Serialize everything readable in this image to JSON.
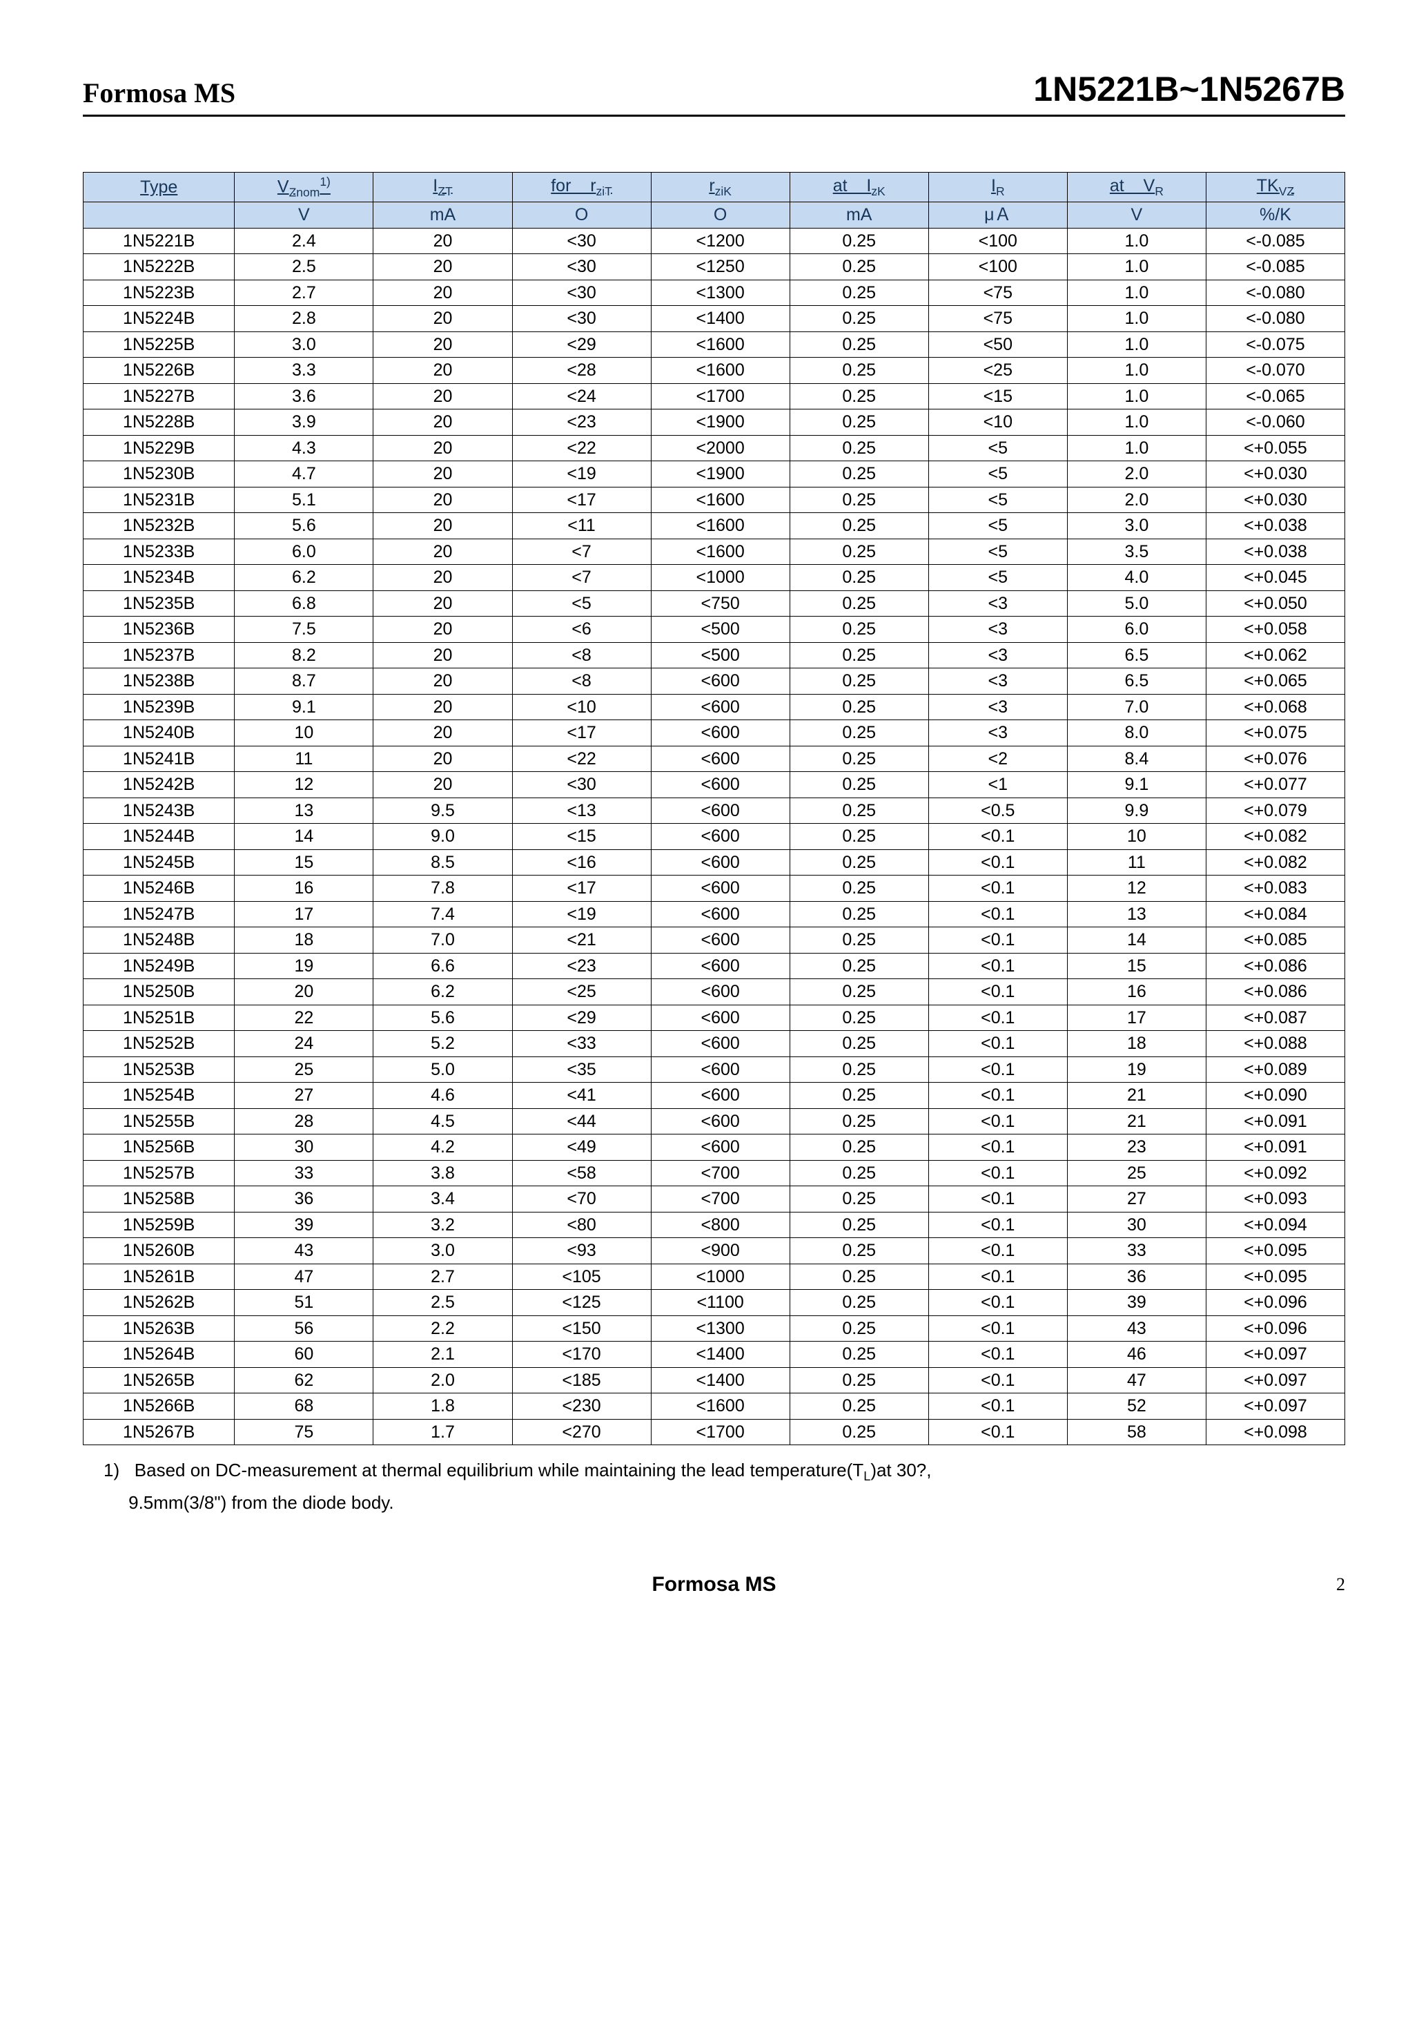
{
  "header": {
    "brand": "Formosa  MS",
    "partno": "1N5221B~1N5267B"
  },
  "table": {
    "header_bg": "#c5d9f1",
    "header_fg": "#16365c",
    "columns": [
      {
        "label_html": "Type",
        "unit": ""
      },
      {
        "label_html": "V<sub>Znom</sub><sup>1)</sup>",
        "unit": "V"
      },
      {
        "label_html": "I<sub>ZT</sub>",
        "unit": "mA"
      },
      {
        "label_html": "for&nbsp;&nbsp;&nbsp;&nbsp;r<sub>ziT</sub>",
        "unit": "Ο"
      },
      {
        "label_html": "r<sub>ziK</sub>",
        "unit": "Ο"
      },
      {
        "label_html": "at&nbsp;&nbsp;&nbsp;&nbsp;I<sub>zK</sub>",
        "unit": "mA"
      },
      {
        "label_html": "I<sub>R</sub>",
        "unit": "μＡ"
      },
      {
        "label_html": "at&nbsp;&nbsp;&nbsp;&nbsp;V<sub>R</sub>",
        "unit": "V"
      },
      {
        "label_html": "TK<sub>VZ</sub>",
        "unit": "%/K"
      }
    ],
    "rows": [
      [
        "1N5221B",
        "2.4",
        "20",
        "<30",
        "<1200",
        "0.25",
        "<100",
        "1.0",
        "<-0.085"
      ],
      [
        "1N5222B",
        "2.5",
        "20",
        "<30",
        "<1250",
        "0.25",
        "<100",
        "1.0",
        "<-0.085"
      ],
      [
        "1N5223B",
        "2.7",
        "20",
        "<30",
        "<1300",
        "0.25",
        "<75",
        "1.0",
        "<-0.080"
      ],
      [
        "1N5224B",
        "2.8",
        "20",
        "<30",
        "<1400",
        "0.25",
        "<75",
        "1.0",
        "<-0.080"
      ],
      [
        "1N5225B",
        "3.0",
        "20",
        "<29",
        "<1600",
        "0.25",
        "<50",
        "1.0",
        "<-0.075"
      ],
      [
        "1N5226B",
        "3.3",
        "20",
        "<28",
        "<1600",
        "0.25",
        "<25",
        "1.0",
        "<-0.070"
      ],
      [
        "1N5227B",
        "3.6",
        "20",
        "<24",
        "<1700",
        "0.25",
        "<15",
        "1.0",
        "<-0.065"
      ],
      [
        "1N5228B",
        "3.9",
        "20",
        "<23",
        "<1900",
        "0.25",
        "<10",
        "1.0",
        "<-0.060"
      ],
      [
        "1N5229B",
        "4.3",
        "20",
        "<22",
        "<2000",
        "0.25",
        "<5",
        "1.0",
        "<+0.055"
      ],
      [
        "1N5230B",
        "4.7",
        "20",
        "<19",
        "<1900",
        "0.25",
        "<5",
        "2.0",
        "<+0.030"
      ],
      [
        "1N5231B",
        "5.1",
        "20",
        "<17",
        "<1600",
        "0.25",
        "<5",
        "2.0",
        "<+0.030"
      ],
      [
        "1N5232B",
        "5.6",
        "20",
        "<11",
        "<1600",
        "0.25",
        "<5",
        "3.0",
        "<+0.038"
      ],
      [
        "1N5233B",
        "6.0",
        "20",
        "<7",
        "<1600",
        "0.25",
        "<5",
        "3.5",
        "<+0.038"
      ],
      [
        "1N5234B",
        "6.2",
        "20",
        "<7",
        "<1000",
        "0.25",
        "<5",
        "4.0",
        "<+0.045"
      ],
      [
        "1N5235B",
        "6.8",
        "20",
        "<5",
        "<750",
        "0.25",
        "<3",
        "5.0",
        "<+0.050"
      ],
      [
        "1N5236B",
        "7.5",
        "20",
        "<6",
        "<500",
        "0.25",
        "<3",
        "6.0",
        "<+0.058"
      ],
      [
        "1N5237B",
        "8.2",
        "20",
        "<8",
        "<500",
        "0.25",
        "<3",
        "6.5",
        "<+0.062"
      ],
      [
        "1N5238B",
        "8.7",
        "20",
        "<8",
        "<600",
        "0.25",
        "<3",
        "6.5",
        "<+0.065"
      ],
      [
        "1N5239B",
        "9.1",
        "20",
        "<10",
        "<600",
        "0.25",
        "<3",
        "7.0",
        "<+0.068"
      ],
      [
        "1N5240B",
        "10",
        "20",
        "<17",
        "<600",
        "0.25",
        "<3",
        "8.0",
        "<+0.075"
      ],
      [
        "1N5241B",
        "11",
        "20",
        "<22",
        "<600",
        "0.25",
        "<2",
        "8.4",
        "<+0.076"
      ],
      [
        "1N5242B",
        "12",
        "20",
        "<30",
        "<600",
        "0.25",
        "<1",
        "9.1",
        "<+0.077"
      ],
      [
        "1N5243B",
        "13",
        "9.5",
        "<13",
        "<600",
        "0.25",
        "<0.5",
        "9.9",
        "<+0.079"
      ],
      [
        "1N5244B",
        "14",
        "9.0",
        "<15",
        "<600",
        "0.25",
        "<0.1",
        "10",
        "<+0.082"
      ],
      [
        "1N5245B",
        "15",
        "8.5",
        "<16",
        "<600",
        "0.25",
        "<0.1",
        "11",
        "<+0.082"
      ],
      [
        "1N5246B",
        "16",
        "7.8",
        "<17",
        "<600",
        "0.25",
        "<0.1",
        "12",
        "<+0.083"
      ],
      [
        "1N5247B",
        "17",
        "7.4",
        "<19",
        "<600",
        "0.25",
        "<0.1",
        "13",
        "<+0.084"
      ],
      [
        "1N5248B",
        "18",
        "7.0",
        "<21",
        "<600",
        "0.25",
        "<0.1",
        "14",
        "<+0.085"
      ],
      [
        "1N5249B",
        "19",
        "6.6",
        "<23",
        "<600",
        "0.25",
        "<0.1",
        "15",
        "<+0.086"
      ],
      [
        "1N5250B",
        "20",
        "6.2",
        "<25",
        "<600",
        "0.25",
        "<0.1",
        "16",
        "<+0.086"
      ],
      [
        "1N5251B",
        "22",
        "5.6",
        "<29",
        "<600",
        "0.25",
        "<0.1",
        "17",
        "<+0.087"
      ],
      [
        "1N5252B",
        "24",
        "5.2",
        "<33",
        "<600",
        "0.25",
        "<0.1",
        "18",
        "<+0.088"
      ],
      [
        "1N5253B",
        "25",
        "5.0",
        "<35",
        "<600",
        "0.25",
        "<0.1",
        "19",
        "<+0.089"
      ],
      [
        "1N5254B",
        "27",
        "4.6",
        "<41",
        "<600",
        "0.25",
        "<0.1",
        "21",
        "<+0.090"
      ],
      [
        "1N5255B",
        "28",
        "4.5",
        "<44",
        "<600",
        "0.25",
        "<0.1",
        "21",
        "<+0.091"
      ],
      [
        "1N5256B",
        "30",
        "4.2",
        "<49",
        "<600",
        "0.25",
        "<0.1",
        "23",
        "<+0.091"
      ],
      [
        "1N5257B",
        "33",
        "3.8",
        "<58",
        "<700",
        "0.25",
        "<0.1",
        "25",
        "<+0.092"
      ],
      [
        "1N5258B",
        "36",
        "3.4",
        "<70",
        "<700",
        "0.25",
        "<0.1",
        "27",
        "<+0.093"
      ],
      [
        "1N5259B",
        "39",
        "3.2",
        "<80",
        "<800",
        "0.25",
        "<0.1",
        "30",
        "<+0.094"
      ],
      [
        "1N5260B",
        "43",
        "3.0",
        "<93",
        "<900",
        "0.25",
        "<0.1",
        "33",
        "<+0.095"
      ],
      [
        "1N5261B",
        "47",
        "2.7",
        "<105",
        "<1000",
        "0.25",
        "<0.1",
        "36",
        "<+0.095"
      ],
      [
        "1N5262B",
        "51",
        "2.5",
        "<125",
        "<1100",
        "0.25",
        "<0.1",
        "39",
        "<+0.096"
      ],
      [
        "1N5263B",
        "56",
        "2.2",
        "<150",
        "<1300",
        "0.25",
        "<0.1",
        "43",
        "<+0.096"
      ],
      [
        "1N5264B",
        "60",
        "2.1",
        "<170",
        "<1400",
        "0.25",
        "<0.1",
        "46",
        "<+0.097"
      ],
      [
        "1N5265B",
        "62",
        "2.0",
        "<185",
        "<1400",
        "0.25",
        "<0.1",
        "47",
        "<+0.097"
      ],
      [
        "1N5266B",
        "68",
        "1.8",
        "<230",
        "<1600",
        "0.25",
        "<0.1",
        "52",
        "<+0.097"
      ],
      [
        "1N5267B",
        "75",
        "1.7",
        "<270",
        "<1700",
        "0.25",
        "<0.1",
        "58",
        "<+0.098"
      ]
    ]
  },
  "footnote": {
    "num": "1)",
    "line1": "Based on DC-measurement at thermal equilibrium while maintaining the lead temperature(T",
    "line1_sub": "L",
    "line1_rest": ")at 30?,",
    "line2": "9.5mm(3/8\") from the diode body."
  },
  "footer": {
    "brand": "Formosa MS",
    "page": "2"
  }
}
